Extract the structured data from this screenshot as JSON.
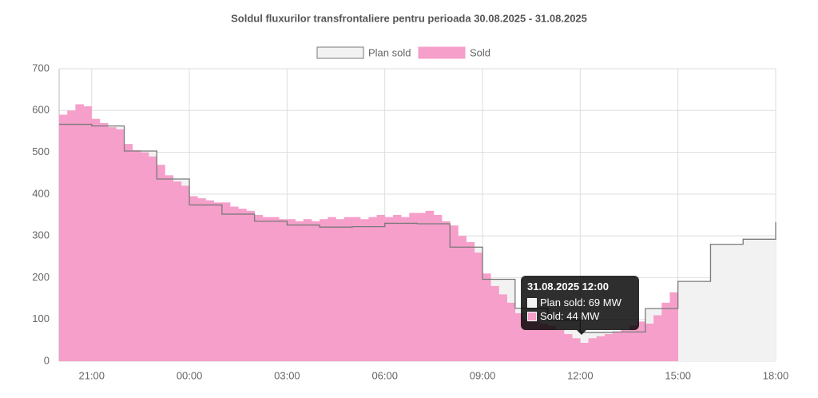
{
  "chart_data": {
    "type": "bar-step",
    "title": "Soldul fluxurilor transfrontaliere  pentru perioada 30.08.2025 - 31.08.2025",
    "categories": [
      "20:00",
      "20:15",
      "20:30",
      "20:45",
      "21:00",
      "21:15",
      "21:30",
      "21:45",
      "22:00",
      "22:15",
      "22:30",
      "22:45",
      "23:00",
      "23:15",
      "23:30",
      "23:45",
      "00:00",
      "00:15",
      "00:30",
      "00:45",
      "01:00",
      "01:15",
      "01:30",
      "01:45",
      "02:00",
      "02:15",
      "02:30",
      "02:45",
      "03:00",
      "03:15",
      "03:30",
      "03:45",
      "04:00",
      "04:15",
      "04:30",
      "04:45",
      "05:00",
      "05:15",
      "05:30",
      "05:45",
      "06:00",
      "06:15",
      "06:30",
      "06:45",
      "07:00",
      "07:15",
      "07:30",
      "07:45",
      "08:00",
      "08:15",
      "08:30",
      "08:45",
      "09:00",
      "09:15",
      "09:30",
      "09:45",
      "10:00",
      "10:15",
      "10:30",
      "10:45",
      "11:00",
      "11:15",
      "11:30",
      "11:45",
      "12:00",
      "12:15",
      "12:30",
      "12:45",
      "13:00",
      "13:15",
      "13:30",
      "13:45",
      "14:00",
      "14:15",
      "14:30",
      "14:45",
      "15:00",
      "15:15",
      "15:30",
      "15:45",
      "16:00",
      "16:15",
      "16:30",
      "16:45",
      "17:00",
      "17:15",
      "17:30",
      "17:45",
      "18:00"
    ],
    "series": [
      {
        "name": "Plan sold",
        "color": "#f2f2f2",
        "stroke": "#7a7a7a",
        "values": [
          567,
          567,
          567,
          567,
          563,
          563,
          563,
          563,
          503,
          503,
          503,
          503,
          436,
          436,
          436,
          436,
          374,
          374,
          374,
          374,
          352,
          352,
          352,
          352,
          335,
          335,
          335,
          335,
          326,
          326,
          326,
          326,
          321,
          321,
          321,
          321,
          322,
          322,
          322,
          322,
          330,
          330,
          330,
          330,
          329,
          329,
          329,
          329,
          273,
          273,
          273,
          273,
          196,
          196,
          196,
          196,
          127,
          127,
          127,
          127,
          99,
          99,
          99,
          99,
          69,
          69,
          69,
          69,
          70,
          70,
          70,
          70,
          126,
          126,
          126,
          126,
          191,
          191,
          191,
          191,
          280,
          280,
          280,
          280,
          292,
          292,
          292,
          292,
          333
        ]
      },
      {
        "name": "Sold",
        "color": "#f59fca",
        "values": [
          590,
          600,
          615,
          610,
          580,
          570,
          560,
          555,
          520,
          505,
          500,
          490,
          470,
          445,
          430,
          420,
          395,
          390,
          385,
          380,
          380,
          370,
          365,
          360,
          350,
          345,
          345,
          340,
          340,
          335,
          340,
          335,
          340,
          345,
          340,
          345,
          345,
          340,
          345,
          350,
          345,
          350,
          345,
          355,
          355,
          360,
          350,
          335,
          325,
          300,
          285,
          260,
          210,
          180,
          160,
          140,
          115,
          100,
          95,
          90,
          85,
          75,
          65,
          55,
          44,
          55,
          60,
          65,
          70,
          75,
          85,
          95,
          90,
          110,
          140,
          165,
          null,
          null,
          null,
          null,
          null,
          null,
          null,
          null,
          null,
          null,
          null,
          null,
          null
        ]
      }
    ],
    "xticks": [
      "21:00",
      "00:00",
      "03:00",
      "06:00",
      "09:00",
      "12:00",
      "15:00",
      "18:00"
    ],
    "ylim": [
      0,
      700
    ],
    "yticks": [
      0,
      100,
      200,
      300,
      400,
      500,
      600,
      700
    ],
    "grid": true,
    "tooltip": {
      "title": "31.08.2025 12:00",
      "items": [
        "Plan sold: 69 MW",
        "Sold: 44 MW"
      ]
    }
  }
}
